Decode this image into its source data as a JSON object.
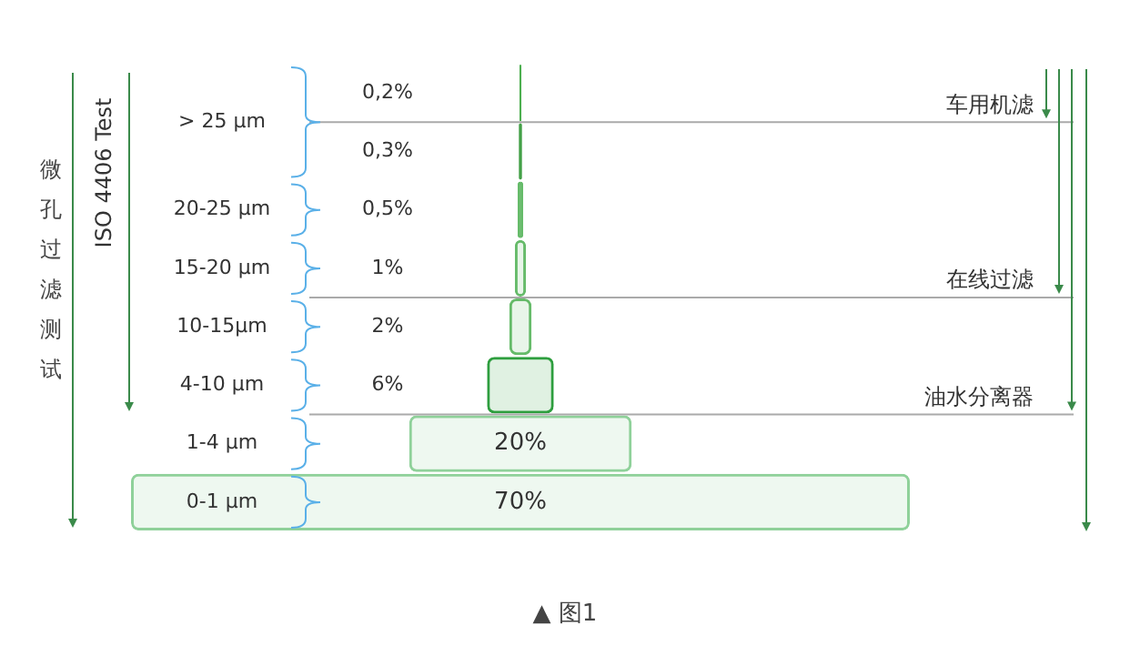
{
  "chart_data": {
    "type": "other",
    "categories": [
      "> 25 µm",
      null,
      "20-25 µm",
      "15-20 µm",
      "10-15µm",
      "4-10 µm",
      "1-4 µm",
      "0-1 µm"
    ],
    "values": [
      0.2,
      0.3,
      0.5,
      1,
      2,
      6,
      20,
      70
    ],
    "value_labels": [
      "0,2%",
      "0,3%",
      "0,5%",
      "1%",
      "2%",
      "6%",
      "20%",
      "70%"
    ],
    "colors": [
      "#4caf50",
      "#43a047",
      "#66bb6a",
      "#66bb6a",
      "#66bb6a",
      "#2e9e3e",
      "#8fd19a",
      "#8fd19a"
    ],
    "annotations": [
      "微孔过滤测试",
      "ISO 4406 Test",
      {
        "text": "车用机滤",
        "y": "> 25 µm"
      },
      {
        "text": "在线过滤",
        "y": "15-20 µm"
      },
      {
        "text": "油水分离器",
        "y": "4-10 µm"
      },
      "▲ 图1"
    ]
  }
}
